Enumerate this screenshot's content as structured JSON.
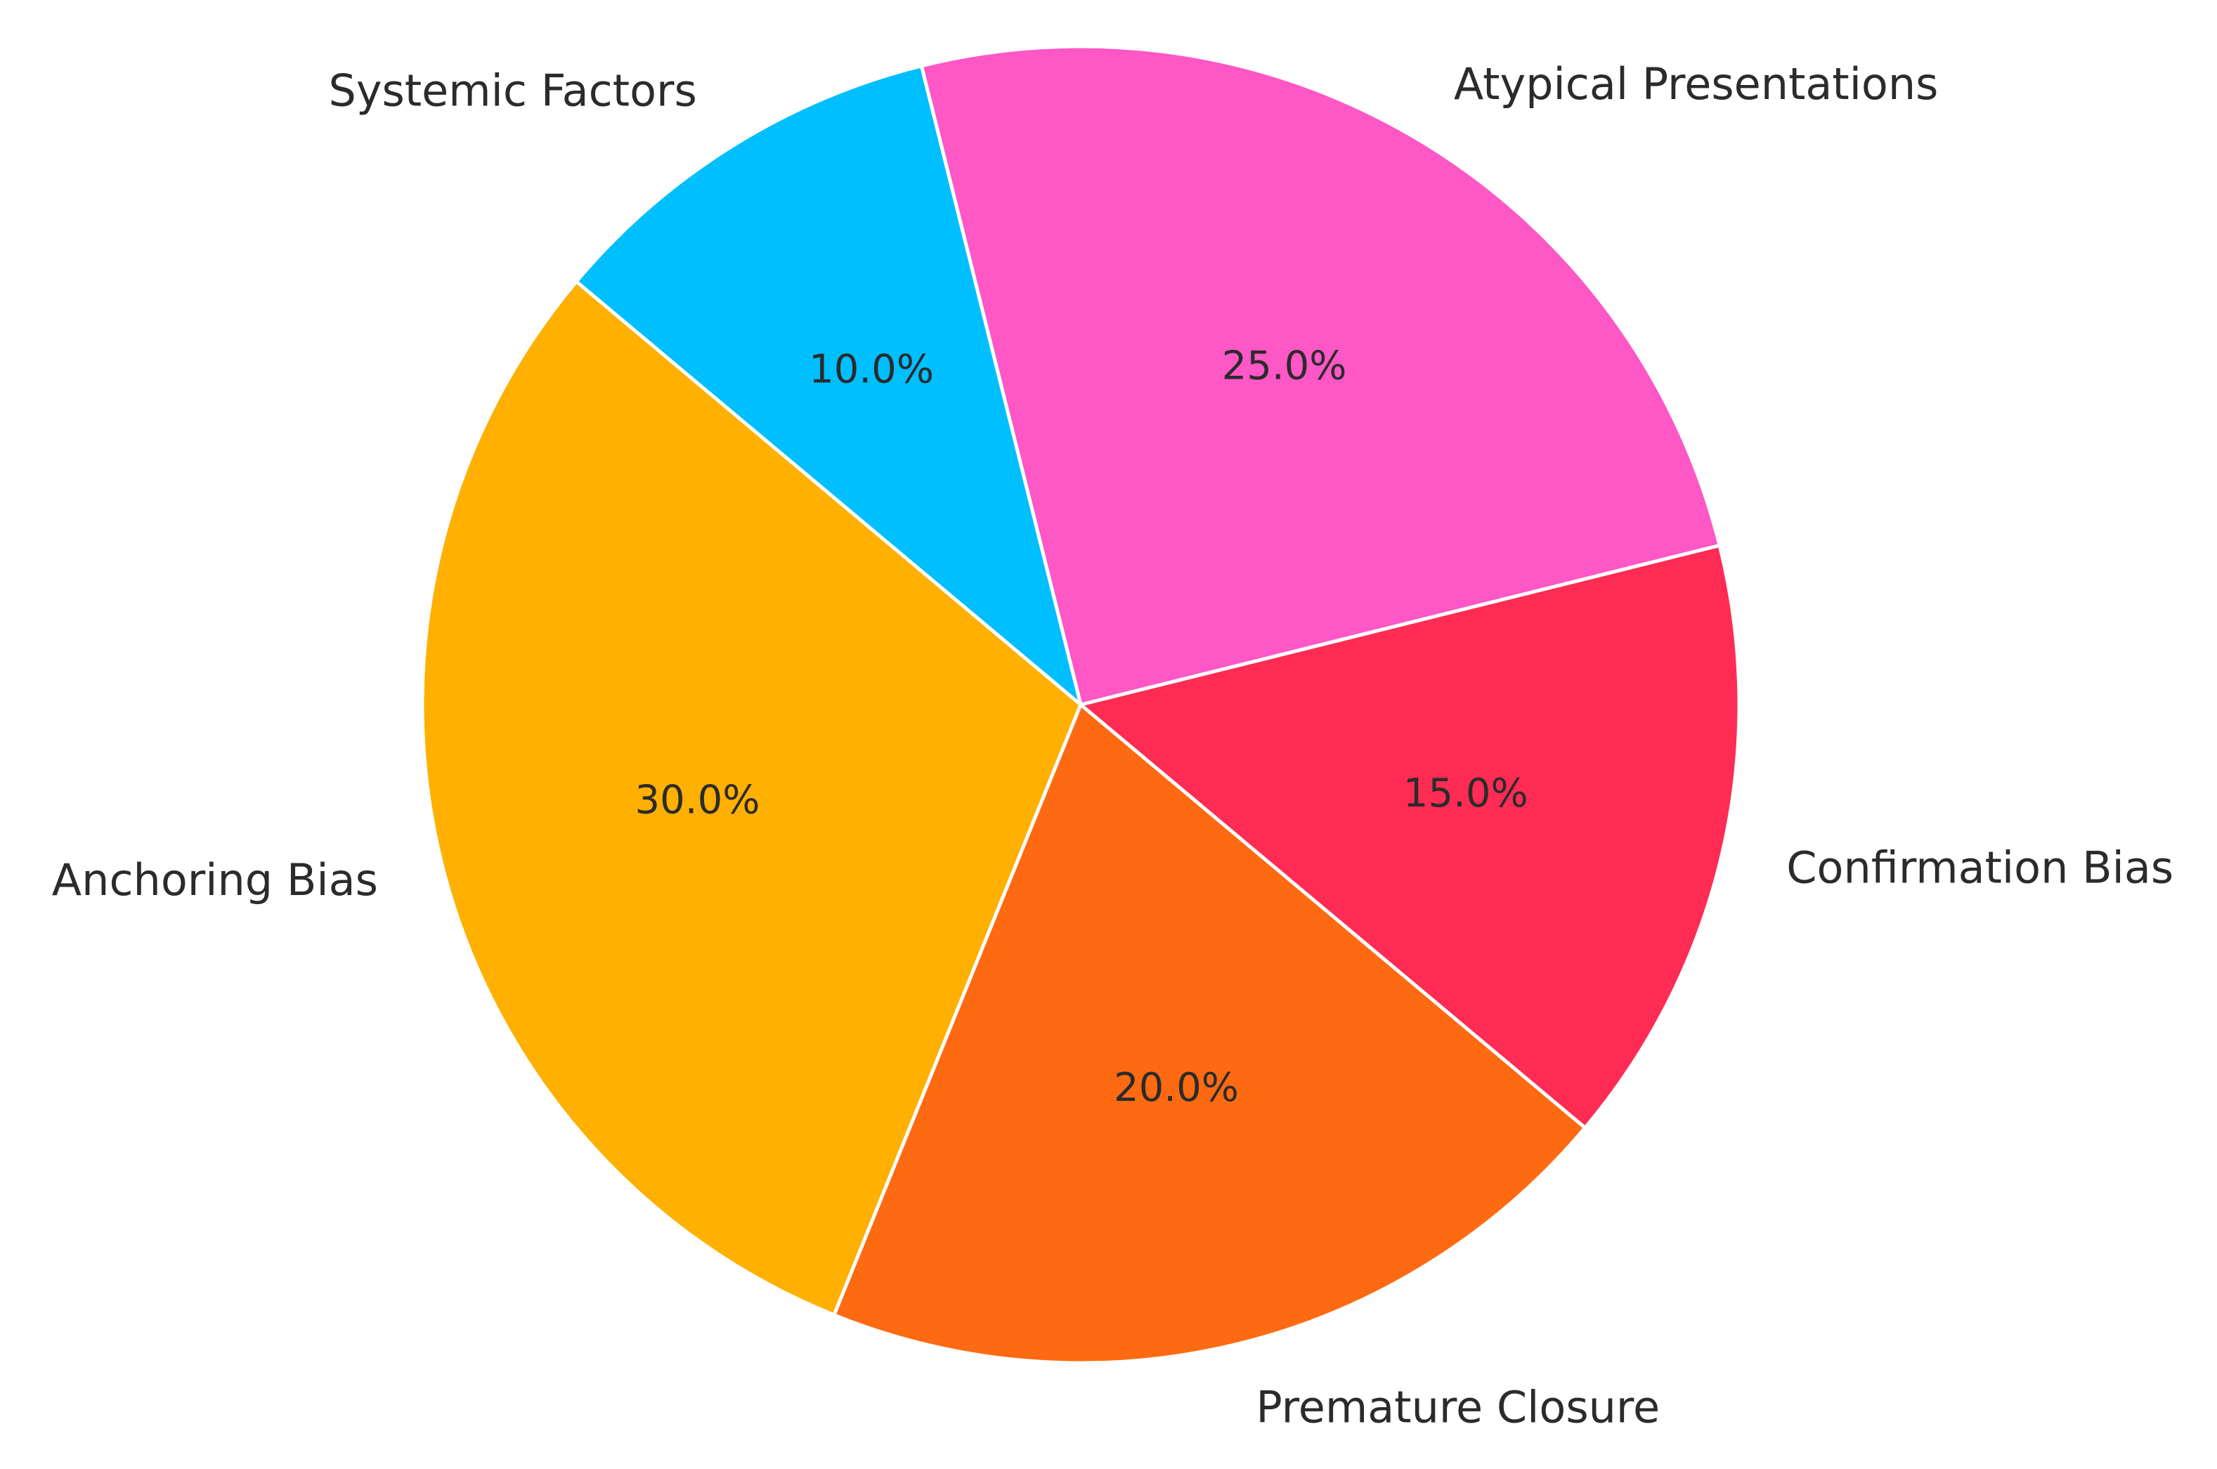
{
  "chart_data": {
    "type": "pie",
    "categories": [
      "Anchoring Bias",
      "Premature Closure",
      "Confirmation Bias",
      "Atypical Presentations",
      "Systemic Factors"
    ],
    "values": [
      30,
      20,
      15,
      25,
      10
    ],
    "percent_labels": [
      "30.0%",
      "20.0%",
      "15.0%",
      "25.0%",
      "10.0%"
    ],
    "colors": [
      "#FFB000",
      "#FE6A12",
      "#FE2C54",
      "#FE57C6",
      "#00BFFE"
    ],
    "start_angle_deg": 140,
    "direction": "counterclockwise",
    "title": "",
    "legend": "none"
  }
}
